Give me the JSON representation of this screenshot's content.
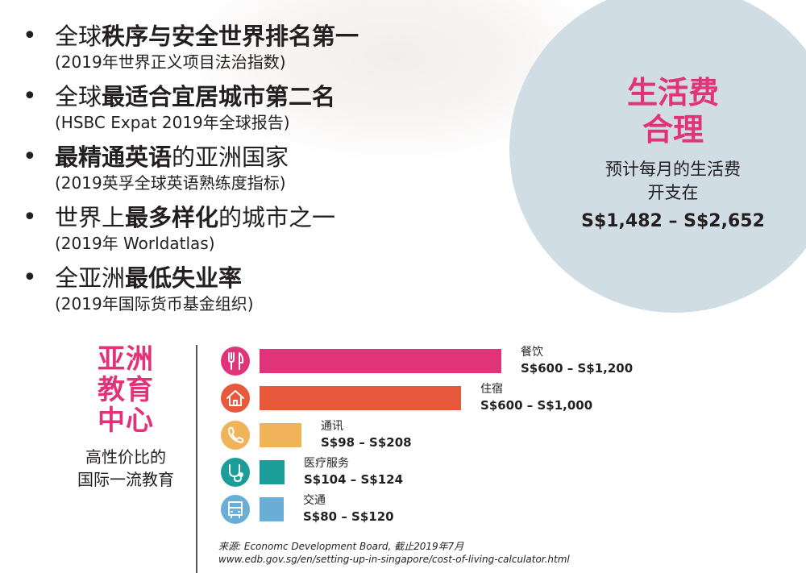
{
  "bullets": [
    {
      "pre": "全球",
      "bold": "秩序与安全世界排名第一",
      "post": "",
      "sub": "(2019年世界正义项目法治指数)"
    },
    {
      "pre": "全球",
      "bold": "最适合宜居城市第二名",
      "post": "",
      "sub": "(HSBC Expat 2019年全球报告)"
    },
    {
      "pre": "",
      "bold": "最精通英语",
      "post": "的亚洲国家",
      "sub": "(2019英孚全球英语熟练度指标)"
    },
    {
      "pre": "世界上",
      "bold": "最多样化",
      "post": "的城市之一",
      "sub": "(2019年 Worldatlas)"
    },
    {
      "pre": "全亚洲",
      "bold": "最低失业率",
      "post": "",
      "sub": "(2019年国际货币基金组织)"
    }
  ],
  "cost_panel": {
    "title_line1": "生活费",
    "title_line2": "合理",
    "sub_line1": "预计每月的生活费",
    "sub_line2": "开支在",
    "range": "S$1,482 – S$2,652"
  },
  "education": {
    "title_line1": "亚洲",
    "title_line2": "教育",
    "title_line3": "中心",
    "sub_line1": "高性价比的",
    "sub_line2": "国际一流教育"
  },
  "chart_data": {
    "type": "bar",
    "orientation": "horizontal",
    "categories": [
      "餐饮",
      "住宿",
      "通讯",
      "医疗服务",
      "交通"
    ],
    "values": [
      1200,
      1000,
      208,
      124,
      120
    ],
    "ranges": [
      [
        600,
        1200
      ],
      [
        600,
        1000
      ],
      [
        98,
        208
      ],
      [
        104,
        124
      ],
      [
        80,
        120
      ]
    ],
    "labels": [
      "S$600 – S$1,200",
      "S$600 – S$1,000",
      "S$98 – S$208",
      "S$104 – S$124",
      "S$80 – S$120"
    ],
    "icons": [
      "cutlery-icon",
      "home-icon",
      "phone-icon",
      "stethoscope-icon",
      "bus-icon"
    ],
    "colors": [
      "#e0337a",
      "#e8593b",
      "#f0b35a",
      "#1b9e9a",
      "#6aaed6"
    ],
    "grid": false
  },
  "source": {
    "line1": "来源: Economc Development Board, 截止2019年7月",
    "line2": "www.edb.gov.sg/en/setting-up-in-singapore/cost-of-living-calculator.html"
  }
}
